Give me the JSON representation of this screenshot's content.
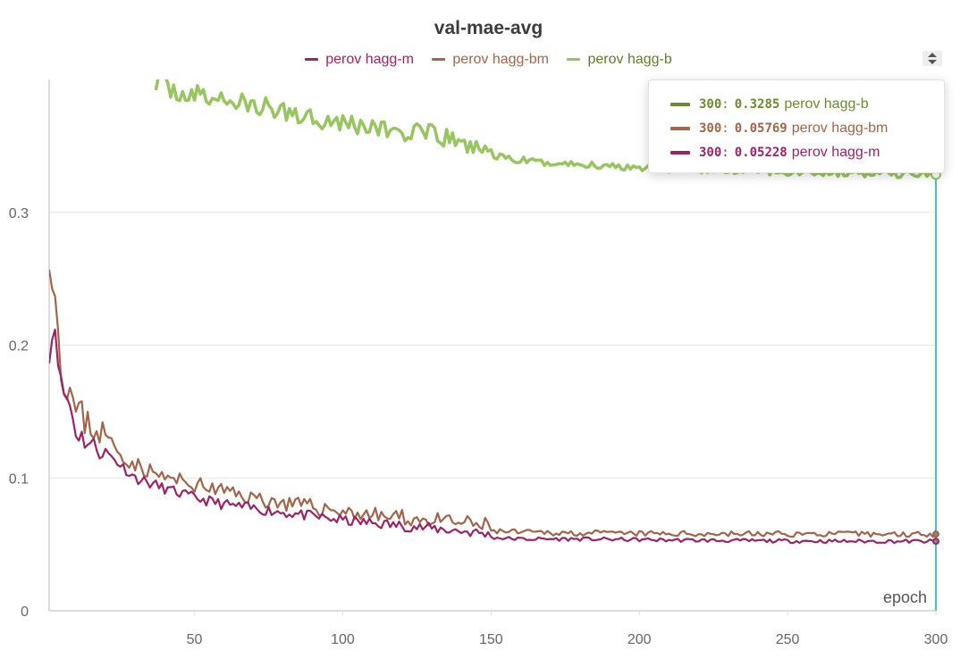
{
  "chart_data": {
    "type": "line",
    "title": "val-mae-avg",
    "xlabel": "epoch",
    "ylabel": "",
    "xlim": [
      1,
      300
    ],
    "ylim": [
      0,
      0.4
    ],
    "x_ticks": [
      50,
      100,
      150,
      200,
      250,
      300
    ],
    "x_tick_labels": [
      "50",
      "100",
      "150",
      "200",
      "250",
      "300"
    ],
    "y_ticks": [
      0,
      0.1,
      0.2,
      0.3
    ],
    "y_tick_labels": [
      "0",
      "0.1",
      "0.2",
      "0.3"
    ],
    "grid": true,
    "legend_position": "top-center",
    "series": [
      {
        "name": "perov hagg-m",
        "color": "#9c2463",
        "anchors": [
          [
            1,
            0.195
          ],
          [
            3,
            0.215
          ],
          [
            5,
            0.17
          ],
          [
            8,
            0.155
          ],
          [
            10,
            0.135
          ],
          [
            15,
            0.125
          ],
          [
            20,
            0.12
          ],
          [
            25,
            0.11
          ],
          [
            30,
            0.1
          ],
          [
            40,
            0.092
          ],
          [
            50,
            0.085
          ],
          [
            60,
            0.08
          ],
          [
            70,
            0.077
          ],
          [
            80,
            0.074
          ],
          [
            90,
            0.071
          ],
          [
            100,
            0.068
          ],
          [
            110,
            0.066
          ],
          [
            120,
            0.064
          ],
          [
            130,
            0.062
          ],
          [
            140,
            0.06
          ],
          [
            148,
            0.058
          ],
          [
            151,
            0.055
          ],
          [
            160,
            0.054
          ],
          [
            180,
            0.054
          ],
          [
            200,
            0.0535
          ],
          [
            220,
            0.053
          ],
          [
            250,
            0.0525
          ],
          [
            280,
            0.0523
          ],
          [
            300,
            0.05228
          ]
        ],
        "noise": 0.004,
        "seed": 11
      },
      {
        "name": "perov hagg-bm",
        "color": "#a1654a",
        "anchors": [
          [
            1,
            0.27
          ],
          [
            3,
            0.24
          ],
          [
            5,
            0.18
          ],
          [
            8,
            0.165
          ],
          [
            10,
            0.15
          ],
          [
            15,
            0.14
          ],
          [
            20,
            0.132
          ],
          [
            25,
            0.118
          ],
          [
            30,
            0.11
          ],
          [
            40,
            0.1
          ],
          [
            50,
            0.095
          ],
          [
            60,
            0.09
          ],
          [
            70,
            0.085
          ],
          [
            80,
            0.081
          ],
          [
            90,
            0.078
          ],
          [
            100,
            0.075
          ],
          [
            110,
            0.072
          ],
          [
            120,
            0.07
          ],
          [
            130,
            0.068
          ],
          [
            140,
            0.066
          ],
          [
            148,
            0.064
          ],
          [
            151,
            0.06
          ],
          [
            160,
            0.059
          ],
          [
            180,
            0.0585
          ],
          [
            200,
            0.058
          ],
          [
            220,
            0.058
          ],
          [
            250,
            0.0578
          ],
          [
            280,
            0.0577
          ],
          [
            300,
            0.05769
          ]
        ],
        "noise": 0.006,
        "seed": 23
      },
      {
        "name": "perov hagg-b",
        "color": "#98c560",
        "anchors": [
          [
            37,
            0.4
          ],
          [
            40,
            0.395
          ],
          [
            45,
            0.39
          ],
          [
            50,
            0.388
          ],
          [
            60,
            0.385
          ],
          [
            70,
            0.38
          ],
          [
            80,
            0.376
          ],
          [
            90,
            0.372
          ],
          [
            100,
            0.368
          ],
          [
            110,
            0.364
          ],
          [
            120,
            0.36
          ],
          [
            130,
            0.358
          ],
          [
            140,
            0.352
          ],
          [
            148,
            0.347
          ],
          [
            152,
            0.342
          ],
          [
            160,
            0.339
          ],
          [
            170,
            0.337
          ],
          [
            180,
            0.336
          ],
          [
            190,
            0.335
          ],
          [
            200,
            0.334
          ],
          [
            210,
            0.333
          ],
          [
            220,
            0.332
          ],
          [
            240,
            0.331
          ],
          [
            260,
            0.33
          ],
          [
            280,
            0.329
          ],
          [
            300,
            0.3285
          ]
        ],
        "noise": 0.008,
        "seed": 37
      }
    ]
  },
  "tooltip": {
    "rows": [
      {
        "x": "300",
        "value": "0.3285",
        "name": "perov hagg-b",
        "color": "#6d8a2e"
      },
      {
        "x": "300",
        "value": "0.05769",
        "name": "perov hagg-bm",
        "color": "#a1654a"
      },
      {
        "x": "300",
        "value": "0.05228",
        "name": "perov hagg-m",
        "color": "#9c2463"
      }
    ]
  },
  "hover_x": 300
}
